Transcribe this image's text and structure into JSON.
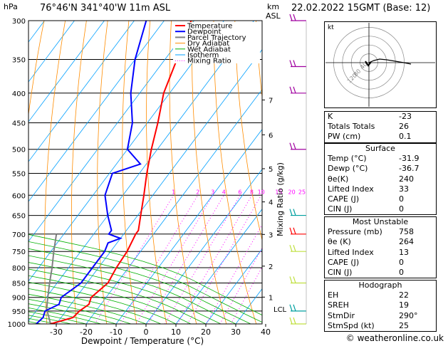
{
  "header": {
    "left_unit": "hPa",
    "location": "76°46'N  341°40'W  11m  ASL",
    "km_label": "km",
    "asl_label": "ASL",
    "datetime": "22.02.2022  15GMT  (Base: 12)"
  },
  "chart_data": {
    "type": "line",
    "xlabel": "Dewpoint / Temperature (°C)",
    "ylabel": "hPa",
    "mixing_ratio_label": "Mixing Ratio (g/kg)",
    "x_ticks": [
      -30,
      -20,
      -10,
      0,
      10,
      20,
      30,
      40
    ],
    "pressure_levels": [
      300,
      350,
      400,
      450,
      500,
      550,
      600,
      650,
      700,
      750,
      800,
      850,
      900,
      950,
      1000
    ],
    "km_ticks": [
      {
        "km": 1,
        "p": 899
      },
      {
        "km": 2,
        "p": 795
      },
      {
        "km": 3,
        "p": 701
      },
      {
        "km": 4,
        "p": 616
      },
      {
        "km": 5,
        "p": 540
      },
      {
        "km": 6,
        "p": 472
      },
      {
        "km": 7,
        "p": 411
      }
    ],
    "lcl_label": "LCL",
    "lcl_pressure": 942,
    "mixing_ratio_values": [
      1,
      2,
      3,
      4,
      6,
      8,
      10,
      15,
      20,
      25
    ],
    "legend": [
      "Temperature",
      "Dewpoint",
      "Parcel Trajectory",
      "Dry Adiabat",
      "Wet Adiabat",
      "Isotherm",
      "Mixing Ratio"
    ],
    "legend_colors": [
      "#ff0000",
      "#0000ff",
      "#808080",
      "#ff8c00",
      "#00b000",
      "#00a0ff",
      "#ff00ff"
    ],
    "temperature": [
      {
        "p": 1000,
        "t": -31.9
      },
      {
        "p": 975,
        "t": -26
      },
      {
        "p": 950,
        "t": -25.5
      },
      {
        "p": 925,
        "t": -24
      },
      {
        "p": 900,
        "t": -25
      },
      {
        "p": 850,
        "t": -23
      },
      {
        "p": 800,
        "t": -24
      },
      {
        "p": 750,
        "t": -24.5
      },
      {
        "p": 700,
        "t": -26
      },
      {
        "p": 690,
        "t": -26
      },
      {
        "p": 650,
        "t": -29
      },
      {
        "p": 600,
        "t": -33
      },
      {
        "p": 550,
        "t": -37.5
      },
      {
        "p": 500,
        "t": -42
      },
      {
        "p": 450,
        "t": -46.5
      },
      {
        "p": 400,
        "t": -52
      },
      {
        "p": 350,
        "t": -56
      },
      {
        "p": 300,
        "t": -61
      }
    ],
    "dewpoint": [
      {
        "p": 1000,
        "t": -36.7
      },
      {
        "p": 975,
        "t": -36
      },
      {
        "p": 950,
        "t": -37
      },
      {
        "p": 925,
        "t": -34
      },
      {
        "p": 900,
        "t": -35
      },
      {
        "p": 850,
        "t": -32
      },
      {
        "p": 800,
        "t": -32
      },
      {
        "p": 750,
        "t": -32
      },
      {
        "p": 725,
        "t": -33
      },
      {
        "p": 712,
        "t": -30
      },
      {
        "p": 700,
        "t": -35
      },
      {
        "p": 690,
        "t": -35
      },
      {
        "p": 650,
        "t": -40
      },
      {
        "p": 600,
        "t": -46
      },
      {
        "p": 550,
        "t": -49
      },
      {
        "p": 530,
        "t": -42
      },
      {
        "p": 500,
        "t": -50
      },
      {
        "p": 450,
        "t": -55
      },
      {
        "p": 400,
        "t": -63
      },
      {
        "p": 350,
        "t": -70
      },
      {
        "p": 300,
        "t": -76
      }
    ],
    "parcel": [
      {
        "p": 1000,
        "t": -31.9
      },
      {
        "p": 942,
        "t": -37
      },
      {
        "p": 900,
        "t": -39.5
      },
      {
        "p": 850,
        "t": -42.5
      },
      {
        "p": 800,
        "t": -45.5
      },
      {
        "p": 750,
        "t": -49
      },
      {
        "p": 700,
        "t": -52.5
      }
    ],
    "xlim": [
      -35,
      40
    ],
    "ylim": [
      1000,
      300
    ]
  },
  "hodograph": {
    "unit": "kt",
    "ring_labels": [
      "40",
      "80",
      "120"
    ]
  },
  "indices": [
    {
      "label": "K",
      "value": "-23"
    },
    {
      "label": "Totals Totals",
      "value": "26"
    },
    {
      "label": "PW (cm)",
      "value": "0.1"
    }
  ],
  "surface": {
    "title": "Surface",
    "rows": [
      {
        "label": "Temp (°C)",
        "value": "-31.9"
      },
      {
        "label": "Dewp (°C)",
        "value": "-36.7"
      },
      {
        "label": "θe(K)",
        "value": "240"
      },
      {
        "label": "Lifted Index",
        "value": "33"
      },
      {
        "label": "CAPE (J)",
        "value": "0"
      },
      {
        "label": "CIN (J)",
        "value": "0"
      }
    ]
  },
  "unstable": {
    "title": "Most Unstable",
    "rows": [
      {
        "label": "Pressure (mb)",
        "value": "758"
      },
      {
        "label": "θe (K)",
        "value": "264"
      },
      {
        "label": "Lifted Index",
        "value": "13"
      },
      {
        "label": "CAPE (J)",
        "value": "0"
      },
      {
        "label": "CIN (J)",
        "value": "0"
      }
    ]
  },
  "hodo_table": {
    "title": "Hodograph",
    "rows": [
      {
        "label": "EH",
        "value": "22"
      },
      {
        "label": "SREH",
        "value": "19"
      },
      {
        "label": "StmDir",
        "value": "290°"
      },
      {
        "label": "StmSpd (kt)",
        "value": "25"
      }
    ]
  },
  "credit": "© weatheronline.co.uk"
}
